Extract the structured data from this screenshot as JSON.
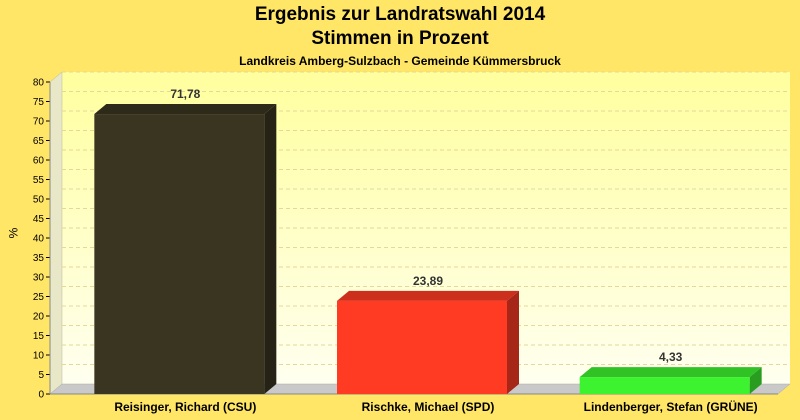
{
  "chart_data": {
    "type": "bar",
    "title": "Ergebnis zur Landratswahl 2014",
    "title_line2": "Stimmen in Prozent",
    "subtitle": "Landkreis Amberg-Sulzbach - Gemeinde Kümmersbruck",
    "ylabel": "%",
    "xlabel": "",
    "ylim": [
      0,
      80
    ],
    "ytick_step": 5,
    "grid": true,
    "categories": [
      "Reisinger, Richard (CSU)",
      "Rischke, Michael (SPD)",
      "Lindenberger, Stefan (GRÜNE)"
    ],
    "values": [
      71.78,
      23.89,
      4.33
    ],
    "value_labels": [
      "71,78",
      "23,89",
      "4,33"
    ],
    "colors": [
      "#3a3520",
      "#ff3b23",
      "#3df22f"
    ]
  }
}
